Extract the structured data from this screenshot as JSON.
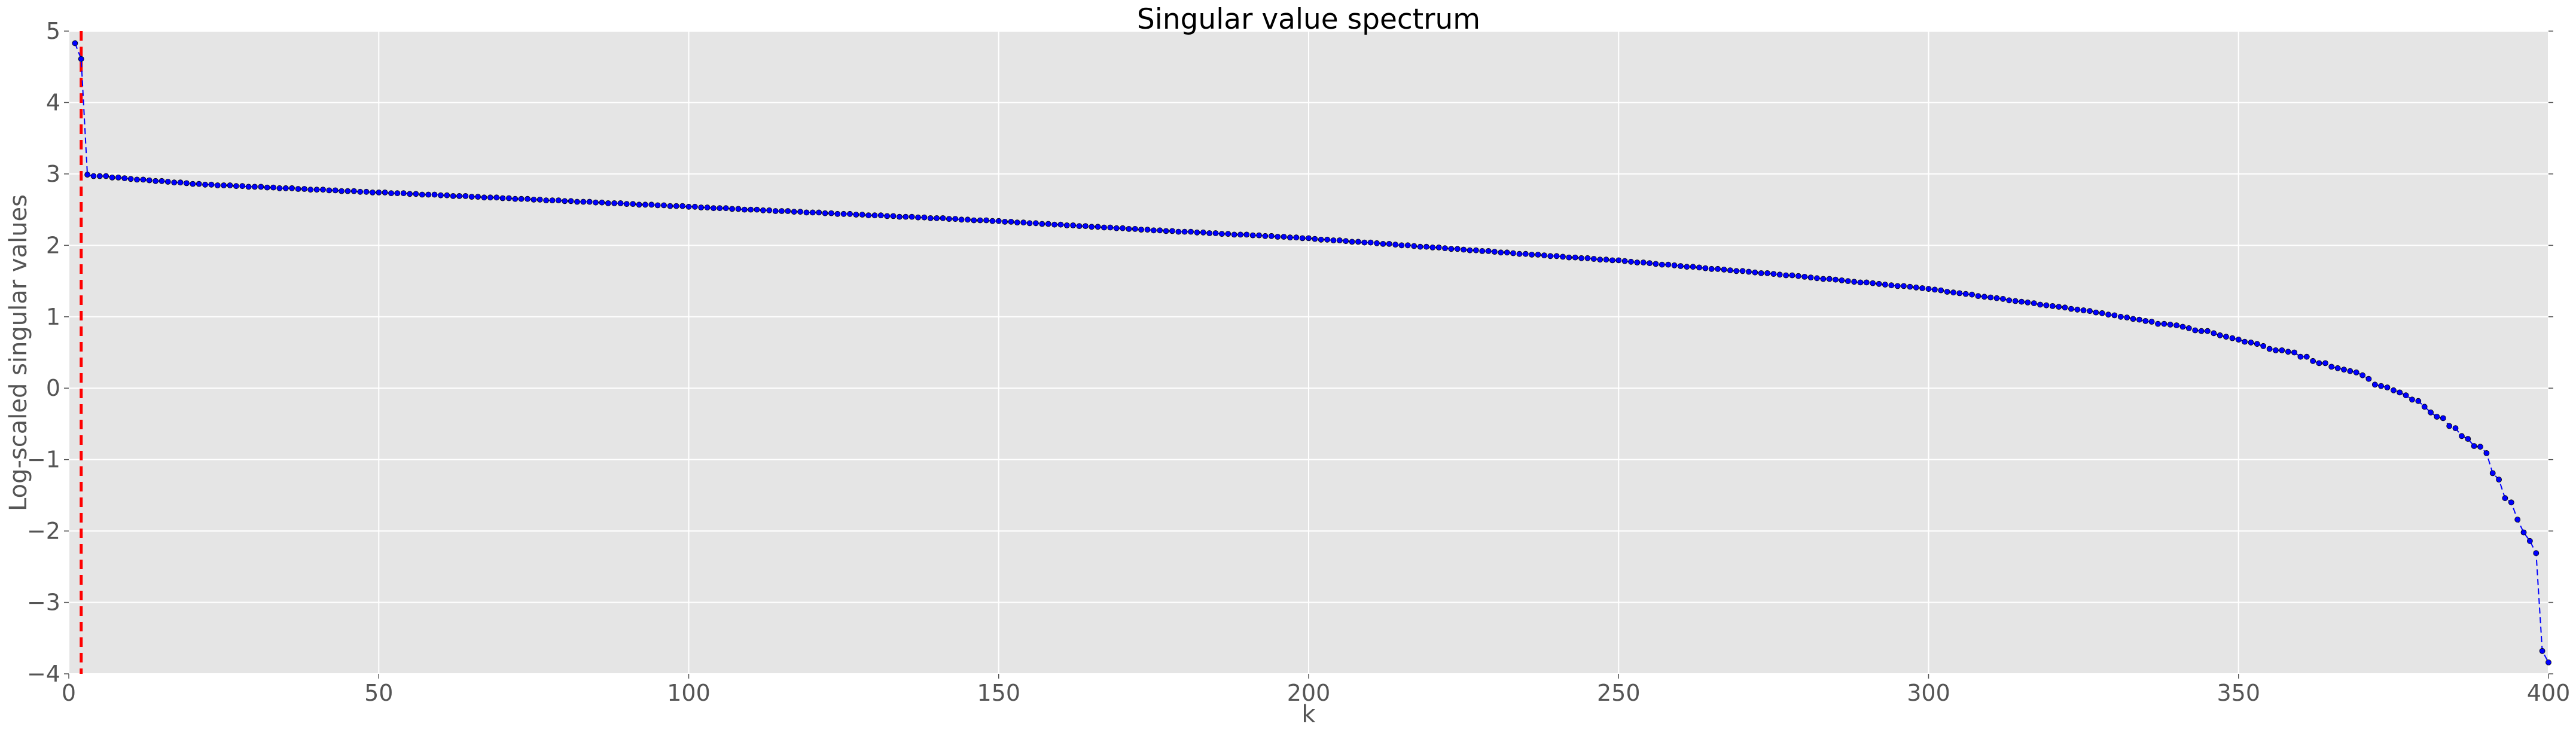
{
  "chart_data": {
    "type": "line",
    "title": "Singular value spectrum",
    "xlabel": "k",
    "ylabel": "Log-scaled singular values",
    "xlim": [
      0,
      400
    ],
    "ylim": [
      -4,
      5
    ],
    "xticks": [
      "0",
      "50",
      "100",
      "150",
      "200",
      "250",
      "300",
      "350",
      "400"
    ],
    "xtick_values": [
      0,
      50,
      100,
      150,
      200,
      250,
      300,
      350,
      400
    ],
    "yticks": [
      "−4",
      "−3",
      "−2",
      "−1",
      "0",
      "1",
      "2",
      "3",
      "4",
      "5"
    ],
    "ytick_values": [
      -4,
      -3,
      -2,
      -1,
      0,
      1,
      2,
      3,
      4,
      5
    ],
    "grid": true,
    "cutoff_line": {
      "x": 2,
      "color": "#ff0000",
      "style": "dashed"
    },
    "series": [
      {
        "name": "singular values",
        "color": "#0000ff",
        "style": "dashed line with circle markers",
        "x_start": 1,
        "values": [
          4.83,
          4.61,
          2.99,
          2.97,
          2.97,
          2.97,
          2.95,
          2.95,
          2.94,
          2.93,
          2.92,
          2.92,
          2.91,
          2.9,
          2.9,
          2.89,
          2.88,
          2.88,
          2.87,
          2.86,
          2.86,
          2.85,
          2.85,
          2.84,
          2.84,
          2.84,
          2.83,
          2.83,
          2.82,
          2.82,
          2.82,
          2.81,
          2.81,
          2.8,
          2.8,
          2.8,
          2.79,
          2.79,
          2.78,
          2.78,
          2.78,
          2.77,
          2.77,
          2.76,
          2.76,
          2.76,
          2.75,
          2.75,
          2.74,
          2.74,
          2.74,
          2.73,
          2.73,
          2.73,
          2.72,
          2.72,
          2.71,
          2.71,
          2.71,
          2.7,
          2.7,
          2.69,
          2.69,
          2.69,
          2.68,
          2.68,
          2.67,
          2.67,
          2.67,
          2.66,
          2.66,
          2.65,
          2.65,
          2.65,
          2.64,
          2.64,
          2.63,
          2.63,
          2.63,
          2.62,
          2.62,
          2.61,
          2.61,
          2.61,
          2.6,
          2.6,
          2.59,
          2.59,
          2.59,
          2.58,
          2.58,
          2.57,
          2.57,
          2.57,
          2.56,
          2.56,
          2.55,
          2.55,
          2.55,
          2.54,
          2.54,
          2.53,
          2.53,
          2.52,
          2.52,
          2.52,
          2.51,
          2.51,
          2.5,
          2.5,
          2.5,
          2.49,
          2.49,
          2.48,
          2.48,
          2.48,
          2.47,
          2.47,
          2.46,
          2.46,
          2.46,
          2.45,
          2.45,
          2.44,
          2.44,
          2.44,
          2.43,
          2.43,
          2.42,
          2.42,
          2.42,
          2.41,
          2.41,
          2.4,
          2.4,
          2.4,
          2.39,
          2.39,
          2.38,
          2.38,
          2.38,
          2.37,
          2.37,
          2.36,
          2.36,
          2.35,
          2.35,
          2.35,
          2.34,
          2.34,
          2.33,
          2.33,
          2.32,
          2.32,
          2.31,
          2.31,
          2.3,
          2.3,
          2.29,
          2.29,
          2.28,
          2.28,
          2.27,
          2.27,
          2.26,
          2.26,
          2.25,
          2.25,
          2.24,
          2.24,
          2.23,
          2.23,
          2.22,
          2.22,
          2.21,
          2.21,
          2.2,
          2.2,
          2.19,
          2.19,
          2.19,
          2.18,
          2.18,
          2.17,
          2.17,
          2.16,
          2.16,
          2.15,
          2.15,
          2.15,
          2.14,
          2.14,
          2.13,
          2.13,
          2.12,
          2.12,
          2.11,
          2.11,
          2.1,
          2.1,
          2.09,
          2.08,
          2.08,
          2.07,
          2.07,
          2.06,
          2.05,
          2.05,
          2.04,
          2.04,
          2.03,
          2.02,
          2.02,
          2.01,
          2.0,
          2.0,
          1.99,
          1.98,
          1.98,
          1.97,
          1.97,
          1.96,
          1.95,
          1.95,
          1.94,
          1.93,
          1.93,
          1.92,
          1.92,
          1.91,
          1.9,
          1.9,
          1.89,
          1.88,
          1.88,
          1.87,
          1.87,
          1.86,
          1.85,
          1.85,
          1.84,
          1.83,
          1.83,
          1.82,
          1.82,
          1.81,
          1.8,
          1.8,
          1.79,
          1.79,
          1.78,
          1.77,
          1.76,
          1.76,
          1.75,
          1.74,
          1.73,
          1.73,
          1.72,
          1.71,
          1.7,
          1.7,
          1.69,
          1.68,
          1.67,
          1.67,
          1.66,
          1.65,
          1.64,
          1.64,
          1.63,
          1.62,
          1.61,
          1.61,
          1.6,
          1.59,
          1.58,
          1.58,
          1.57,
          1.56,
          1.55,
          1.54,
          1.53,
          1.53,
          1.52,
          1.51,
          1.5,
          1.49,
          1.48,
          1.48,
          1.47,
          1.46,
          1.45,
          1.44,
          1.43,
          1.43,
          1.42,
          1.41,
          1.4,
          1.39,
          1.38,
          1.37,
          1.35,
          1.34,
          1.33,
          1.32,
          1.31,
          1.29,
          1.28,
          1.27,
          1.26,
          1.25,
          1.23,
          1.22,
          1.21,
          1.2,
          1.19,
          1.17,
          1.16,
          1.15,
          1.14,
          1.13,
          1.11,
          1.1,
          1.09,
          1.08,
          1.06,
          1.05,
          1.03,
          1.02,
          1.0,
          0.99,
          0.97,
          0.96,
          0.94,
          0.93,
          0.9,
          0.9,
          0.89,
          0.88,
          0.86,
          0.84,
          0.81,
          0.8,
          0.8,
          0.77,
          0.74,
          0.72,
          0.7,
          0.68,
          0.65,
          0.64,
          0.62,
          0.59,
          0.55,
          0.53,
          0.53,
          0.51,
          0.5,
          0.44,
          0.44,
          0.38,
          0.35,
          0.35,
          0.3,
          0.28,
          0.26,
          0.24,
          0.22,
          0.18,
          0.13,
          0.05,
          0.03,
          0.01,
          -0.03,
          -0.06,
          -0.1,
          -0.16,
          -0.18,
          -0.26,
          -0.34,
          -0.4,
          -0.42,
          -0.53,
          -0.56,
          -0.67,
          -0.71,
          -0.81,
          -0.82,
          -0.91,
          -1.19,
          -1.28,
          -1.54,
          -1.6,
          -1.84,
          -2.02,
          -2.14,
          -2.31,
          -3.68,
          -3.84
        ]
      }
    ],
    "background": "#e5e5e5"
  }
}
